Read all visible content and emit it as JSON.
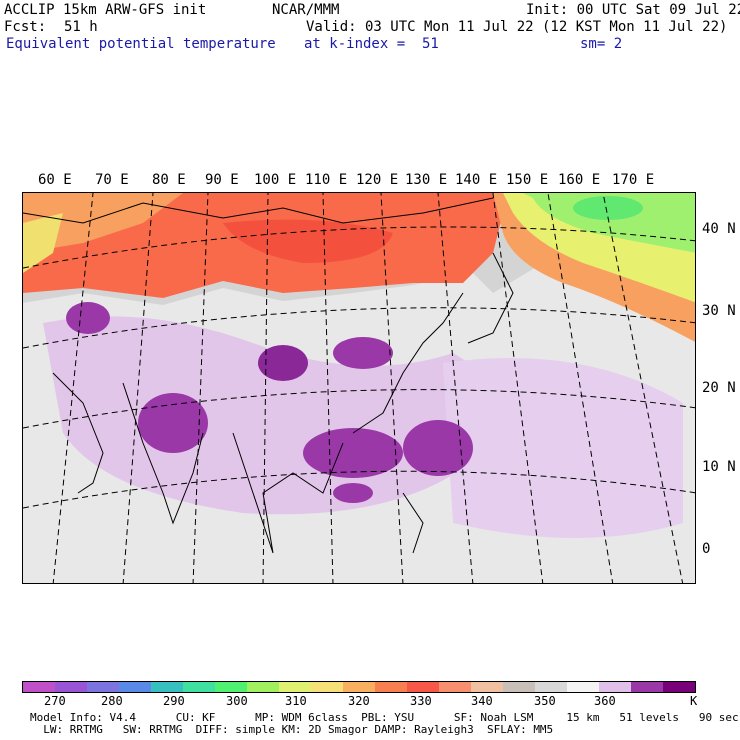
{
  "header": {
    "model_line": "ACCLIP 15km ARW-GFS init",
    "center": "NCAR/MMM",
    "init": "Init: 00 UTC Sat 09 Jul 22",
    "fcst_label": "Fcst:",
    "fcst_value": "51 h",
    "valid": "Valid: 03 UTC Mon 11 Jul 22 (12 KST Mon 11 Jul 22)",
    "field_name": "Equivalent potential temperature",
    "level": "at k-index =  51",
    "smooth": "sm= 2"
  },
  "map": {
    "lon_labels": [
      "60 E",
      "70 E",
      "80 E",
      "90 E",
      "100 E",
      "110 E",
      "120 E",
      "130 E",
      "140 E",
      "150 E",
      "160 E",
      "170 E"
    ],
    "lat_labels": [
      "40 N",
      "30 N",
      "20 N",
      "10 N",
      "0"
    ]
  },
  "colorbar": {
    "colors": [
      "#c050c8",
      "#9a55d6",
      "#7c75e0",
      "#5a8ae8",
      "#38c0c0",
      "#40e0a0",
      "#50f070",
      "#a0f060",
      "#e0f070",
      "#f8e078",
      "#f8b060",
      "#f88050",
      "#f85848",
      "#f89070",
      "#f0c0a0",
      "#c8c0b8",
      "#d8d8d8",
      "#f4f4f4",
      "#e0c0e8",
      "#9a38a8",
      "#780078"
    ],
    "labels": [
      "270",
      "280",
      "290",
      "300",
      "310",
      "320",
      "330",
      "340",
      "350",
      "360",
      "K"
    ]
  },
  "footer": {
    "line1": "Model Info: V4.4      CU: KF      MP: WDM 6class  PBL: YSU      SF: Noah LSM     15 km   51 levels   90 sec",
    "line2": "  LW: RRTMG   SW: RRTMG  DIFF: simple KM: 2D Smagor DAMP: Rayleigh3  SFLAY: MM5"
  }
}
